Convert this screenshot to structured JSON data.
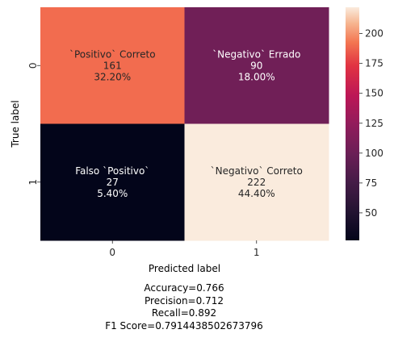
{
  "chart_data": {
    "type": "heatmap",
    "xlabel": "Predicted label",
    "ylabel": "True label",
    "x_categories": [
      "0",
      "1"
    ],
    "y_categories": [
      "0",
      "1"
    ],
    "cells": [
      {
        "row": 0,
        "col": 0,
        "name": "`Positivo` Correto",
        "count": "161",
        "percent": "32.20%",
        "value": 161
      },
      {
        "row": 0,
        "col": 1,
        "name": "`Negativo` Errado",
        "count": "90",
        "percent": "18.00%",
        "value": 90
      },
      {
        "row": 1,
        "col": 0,
        "name": "Falso `Positivo`",
        "count": "27",
        "percent": "5.40%",
        "value": 27
      },
      {
        "row": 1,
        "col": 1,
        "name": "`Negativo` Correto",
        "count": "222",
        "percent": "44.40%",
        "value": 222
      }
    ],
    "colorbar": {
      "colormap": "rocket",
      "range": [
        27,
        222
      ],
      "ticks": [
        "50",
        "75",
        "100",
        "125",
        "150",
        "175",
        "200"
      ],
      "tick_values": [
        50,
        75,
        100,
        125,
        150,
        175,
        200
      ]
    }
  },
  "metrics": {
    "accuracy": "Accuracy=0.766",
    "precision": "Precision=0.712",
    "recall": "Recall=0.892",
    "f1": "F1 Score=0.7914438502673796"
  },
  "colors": {
    "cell_00": "#f26c4f",
    "cell_01": "#701f57",
    "cell_10": "#03051a",
    "cell_11": "#faebdd"
  }
}
